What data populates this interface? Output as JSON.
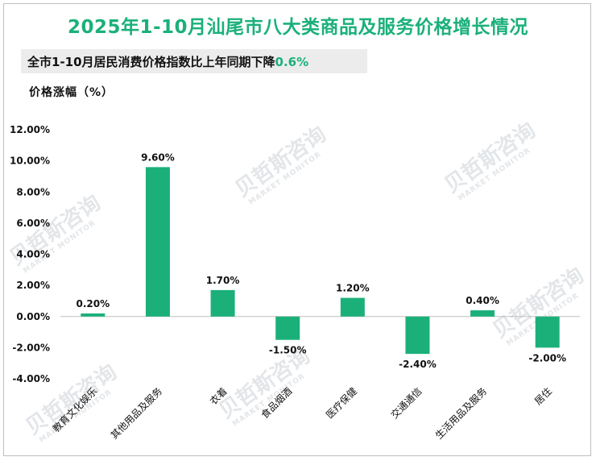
{
  "title": "2025年1-10月汕尾市八大类商品及服务价格增长情况",
  "subtitle": {
    "text": "全市1-10月居民消费价格指数比上年同期下降",
    "highlight": "0.6%"
  },
  "colors": {
    "bar": "#1bb07a",
    "title": "#1bb07a",
    "axis": "#bfbfbf"
  },
  "watermark": {
    "cn": "贝哲斯咨询",
    "en": "MARKET MONITOR"
  },
  "chart_data": {
    "type": "bar",
    "ylabel": "价格涨幅（%）",
    "categories": [
      "教育文化娱乐",
      "其他用品及服务",
      "衣着",
      "食品烟酒",
      "医疗保健",
      "交通通信",
      "生活用品及服务",
      "居住"
    ],
    "values": [
      0.2,
      9.6,
      1.7,
      -1.5,
      1.2,
      -2.4,
      0.4,
      -2.0
    ],
    "value_labels": [
      "0.20%",
      "9.60%",
      "1.70%",
      "-1.50%",
      "1.20%",
      "-2.40%",
      "0.40%",
      "-2.00%"
    ],
    "ylim": [
      -4,
      12
    ],
    "yticks": [
      12,
      10,
      8,
      6,
      4,
      2,
      0,
      -2,
      -4
    ],
    "ytick_labels": [
      "12.00%",
      "10.00%",
      "8.00%",
      "6.00%",
      "4.00%",
      "2.00%",
      "0.00%",
      "-2.00%",
      "-4.00%"
    ],
    "grid": false,
    "legend": "none"
  }
}
